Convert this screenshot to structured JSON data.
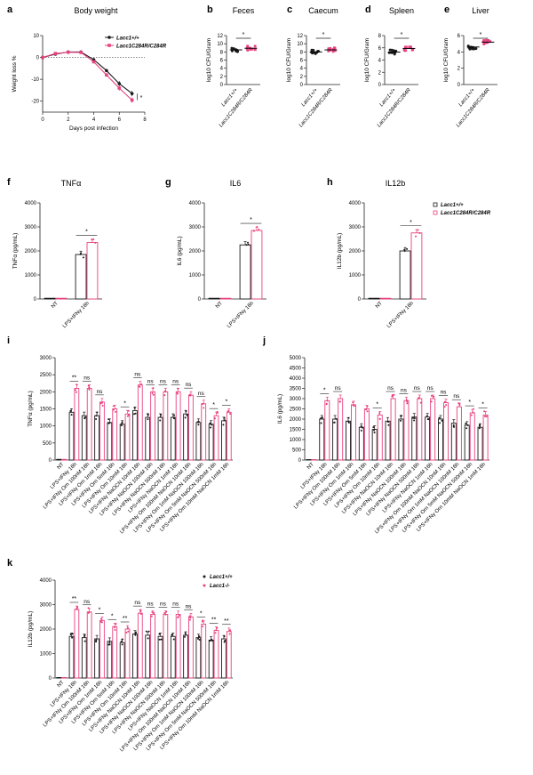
{
  "colors": {
    "wt": "#1a1a1a",
    "mut": "#e8417f",
    "mutFill": "#f7c4d6",
    "wtFill": "#d9d9d9",
    "axis": "#222222"
  },
  "figure": {
    "legend_top": {
      "wt": "Lacc1+/+",
      "mut": "Lacc1C284R/C284R"
    },
    "legend_k": {
      "wt": "Lacc1+/+",
      "mut": "Lacc1-/-"
    }
  },
  "chart_data": [
    {
      "id": "a",
      "panel": "a",
      "type": "line",
      "title": "Body weight",
      "xlabel": "Days post infection",
      "ylabel": "Weight loss %",
      "xlim": [
        0,
        8
      ],
      "ylim": [
        -25,
        10
      ],
      "xticks": [
        0,
        2,
        4,
        6,
        8
      ],
      "yticks": [
        10,
        0,
        -10,
        -20
      ],
      "series": [
        {
          "name": "Lacc1+/+",
          "x": [
            0,
            1,
            2,
            3,
            4,
            5,
            6,
            7
          ],
          "values": [
            0,
            1.5,
            2.5,
            2.5,
            -1,
            -6,
            -12,
            -16.5
          ]
        },
        {
          "name": "Lacc1C284R/C284R",
          "x": [
            0,
            1,
            2,
            3,
            4,
            5,
            6,
            7
          ],
          "values": [
            0,
            1.8,
            2.4,
            2.3,
            -2,
            -8,
            -14,
            -19.5
          ]
        }
      ],
      "annotation": "*"
    },
    {
      "id": "b",
      "panel": "b",
      "type": "scatter-bar",
      "title": "Feces",
      "ylabel": "log10 CFU/Gram",
      "ylim": [
        0,
        12
      ],
      "yticks": [
        0,
        2,
        4,
        6,
        8,
        10,
        12
      ],
      "categories": [
        "Lacc1+/+",
        "Lacc1C284R/C284R"
      ],
      "values": [
        8.5,
        8.9
      ],
      "sig": "*"
    },
    {
      "id": "c",
      "panel": "c",
      "type": "scatter-bar",
      "title": "Caecum",
      "ylabel": "log10 CFU/Gram",
      "ylim": [
        0,
        12
      ],
      "yticks": [
        0,
        2,
        4,
        6,
        8,
        10,
        12
      ],
      "categories": [
        "Lacc1+/+",
        "Lacc1C284R/C284R"
      ],
      "values": [
        8.0,
        8.5
      ],
      "sig": "*"
    },
    {
      "id": "d",
      "panel": "d",
      "type": "scatter-bar",
      "title": "Spleen",
      "ylabel": "log10 CFU/Gram",
      "ylim": [
        0,
        8
      ],
      "yticks": [
        0,
        2,
        4,
        6,
        8
      ],
      "categories": [
        "Lacc1+/+",
        "Lacc1C284R/C284R"
      ],
      "values": [
        5.3,
        5.9
      ],
      "sig": "*"
    },
    {
      "id": "e",
      "panel": "e",
      "type": "scatter-bar",
      "title": "Liver",
      "ylabel": "log10 CFU/Gram",
      "ylim": [
        0,
        6
      ],
      "yticks": [
        0,
        2,
        4,
        6
      ],
      "categories": [
        "Lacc1+/+",
        "Lacc1C284R/C284R"
      ],
      "values": [
        4.6,
        5.2
      ],
      "sig": "*"
    },
    {
      "id": "f",
      "panel": "f",
      "type": "bar",
      "title": "TNFα",
      "ylabel": "TNFα (pg/mL)",
      "ylim": [
        0,
        4000
      ],
      "yticks": [
        0,
        1000,
        2000,
        3000,
        4000
      ],
      "categories": [
        "NT",
        "LPS+IFNγ 16h"
      ],
      "series": [
        {
          "name": "Lacc1+/+",
          "values": [
            30,
            1850
          ]
        },
        {
          "name": "Lacc1C284R/C284R",
          "values": [
            30,
            2350
          ]
        }
      ],
      "sig": [
        "",
        "*"
      ]
    },
    {
      "id": "g",
      "panel": "g",
      "type": "bar",
      "title": "IL6",
      "ylabel": "IL6 (pg/mL)",
      "ylim": [
        0,
        4000
      ],
      "yticks": [
        0,
        1000,
        2000,
        3000,
        4000
      ],
      "categories": [
        "NT",
        "LPS+IFNγ 16h"
      ],
      "series": [
        {
          "name": "Lacc1+/+",
          "values": [
            30,
            2250
          ]
        },
        {
          "name": "Lacc1C284R/C284R",
          "values": [
            30,
            2850
          ]
        }
      ],
      "sig": [
        "",
        "*"
      ]
    },
    {
      "id": "h",
      "panel": "h",
      "type": "bar",
      "title": "IL12b",
      "ylabel": "IL12b (pg/mL)",
      "ylim": [
        0,
        4000
      ],
      "yticks": [
        0,
        1000,
        2000,
        3000,
        4000
      ],
      "categories": [
        "NT",
        "LPS+IFNγ 16h"
      ],
      "series": [
        {
          "name": "Lacc1+/+",
          "values": [
            30,
            2000
          ]
        },
        {
          "name": "Lacc1C284R/C284R",
          "values": [
            30,
            2750
          ]
        }
      ],
      "sig": [
        "",
        "*"
      ]
    },
    {
      "id": "i",
      "panel": "i",
      "type": "bar",
      "title": "",
      "ylabel": "TNFα (pg/mL)",
      "ylim": [
        0,
        3000
      ],
      "yticks": [
        0,
        500,
        1000,
        1500,
        2000,
        2500,
        3000
      ],
      "categories": [
        "NT",
        "LPS+IFNγ 16h",
        "LPS+IFNγ Orn 100nM 16h",
        "LPS+IFNγ Orn 1mM 16h",
        "LPS+IFNγ Orn 5mM 16h",
        "LPS+IFNγ Orn 10mM 16h",
        "LPS+IFNγ NaOCN 10nM 16h",
        "LPS+IFNγ NaOCN 100nM 16h",
        "LPS+IFNγ NaOCN 500nM 16h",
        "LPS+IFNγ NaOCN 1mM 16h",
        "LPS+IFNγ Orn 100nM NaOCN 10nM 16h",
        "LPS+IFNγ Orn 1mM NaOCN 100nM 16h",
        "LPS+IFNγ Orn 5mM NaOCN 500nM 16h",
        "LPS+IFNγ Orn 10mM NaOCN 1mM 16h"
      ],
      "series": [
        {
          "name": "Lacc1+/+",
          "values": [
            20,
            1400,
            1300,
            1300,
            1100,
            1050,
            1450,
            1250,
            1250,
            1250,
            1350,
            1100,
            1050,
            1150
          ]
        },
        {
          "name": "Lacc1C284R/C284R",
          "values": [
            20,
            2100,
            2100,
            1700,
            1500,
            1350,
            2200,
            2000,
            2000,
            2000,
            1900,
            1650,
            1300,
            1400
          ]
        }
      ],
      "sig": [
        "",
        "**",
        "ns",
        "ns",
        "",
        "*",
        "ns",
        "ns",
        "ns",
        "ns",
        "ns",
        "ns",
        "*",
        "*"
      ]
    },
    {
      "id": "j",
      "panel": "j",
      "type": "bar",
      "title": "",
      "ylabel": "IL6 (pg/mL)",
      "ylim": [
        0,
        5000
      ],
      "yticks": [
        0,
        500,
        1000,
        1500,
        2000,
        2500,
        3000,
        3500,
        4000,
        4500,
        5000
      ],
      "categories": [
        "NT",
        "LPS+IFNγ 16h",
        "LPS+IFNγ Orn 100nM 16h",
        "LPS+IFNγ Orn 1mM 16h",
        "LPS+IFNγ Orn 5mM 16h",
        "LPS+IFNγ Orn 10mM 16h",
        "LPS+IFNγ NaOCN 10nM 16h",
        "LPS+IFNγ NaOCN 100nM 16h",
        "LPS+IFNγ NaOCN 500nM 16h",
        "LPS+IFNγ NaOCN 1mM 16h",
        "LPS+IFNγ Orn 100nM NaOCN 10nM 16h",
        "LPS+IFNγ Orn 1mM NaOCN 100nM 16h",
        "LPS+IFNγ Orn 5mM NaOCN 500nM 16h",
        "LPS+IFNγ Orn 10mM NaOCN 1mM 16h"
      ],
      "series": [
        {
          "name": "Lacc1+/+",
          "values": [
            20,
            2000,
            2000,
            1900,
            1600,
            1500,
            1900,
            2000,
            2100,
            2100,
            2000,
            1800,
            1700,
            1600
          ]
        },
        {
          "name": "Lacc1C284R/C284R",
          "values": [
            20,
            2900,
            3000,
            2700,
            2500,
            2200,
            3000,
            2900,
            3000,
            3000,
            2800,
            2600,
            2300,
            2200
          ]
        }
      ],
      "sig": [
        "",
        "*",
        "ns",
        "",
        "",
        "*",
        "ns",
        "ns",
        "ns",
        "ns",
        "ns",
        "ns",
        "*",
        "*"
      ]
    },
    {
      "id": "k",
      "panel": "k",
      "type": "bar",
      "title": "",
      "ylabel": "IL12b (pg/mL)",
      "ylim": [
        0,
        4000
      ],
      "yticks": [
        0,
        1000,
        2000,
        3000,
        4000
      ],
      "categories": [
        "NT",
        "LPS+IFNγ 16h",
        "LPS+IFNγ Orn 100nM 16h",
        "LPS+IFNγ Orn 1mM 16h",
        "LPS+IFNγ Orn 5mM 16h",
        "LPS+IFNγ Orn 10mM 16h",
        "LPS+IFNγ NaOCN 10nM 16h",
        "LPS+IFNγ NaOCN 100nM 16h",
        "LPS+IFNγ NaOCN 500nM 16h",
        "LPS+IFNγ NaOCN 1mM 16h",
        "LPS+IFNγ Orn 100nM NaOCN 10nM 16h",
        "LPS+IFNγ Orn 1mM NaOCN 100nM 16h",
        "LPS+IFNγ Orn 5mM NaOCN 500nM 16h",
        "LPS+IFNγ Orn 10mM NaOCN 1mM 16h"
      ],
      "series": [
        {
          "name": "Lacc1+/+",
          "values": [
            20,
            1700,
            1650,
            1600,
            1500,
            1450,
            1800,
            1750,
            1700,
            1700,
            1750,
            1650,
            1550,
            1600
          ]
        },
        {
          "name": "Lacc1-/-",
          "values": [
            20,
            2800,
            2700,
            2350,
            2100,
            2000,
            2650,
            2600,
            2600,
            2600,
            2500,
            2200,
            1950,
            1900
          ]
        }
      ],
      "sig": [
        "",
        "**",
        "ns",
        "*",
        "*",
        "**",
        "ns",
        "ns",
        "ns",
        "ns",
        "ns",
        "*",
        "**",
        "**"
      ]
    }
  ]
}
